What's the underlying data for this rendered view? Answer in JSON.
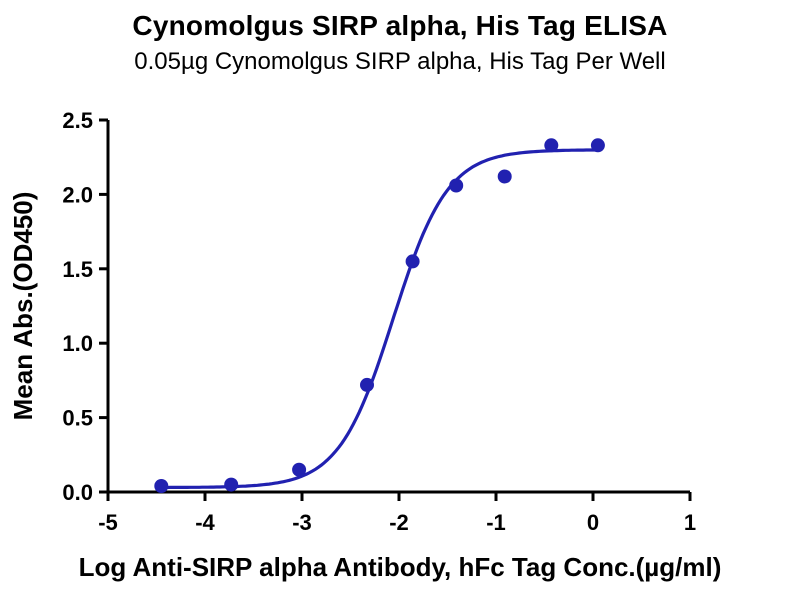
{
  "header": {
    "title": "Cynomolgus SIRP alpha, His Tag ELISA",
    "subtitle": "0.05µg Cynomolgus SIRP alpha, His Tag Per Well"
  },
  "chart_data": {
    "type": "scatter",
    "title": "Cynomolgus SIRP alpha, His Tag ELISA",
    "subtitle": "0.05µg Cynomolgus SIRP alpha, His Tag Per Well",
    "xlabel": "Log Anti-SIRP alpha Antibody, hFc Tag Conc.(µg/ml)",
    "ylabel": "Mean Abs.(OD450)",
    "xlim": [
      -5,
      1
    ],
    "ylim": [
      0,
      2.5
    ],
    "x_ticks": [
      -5,
      -4,
      -3,
      -2,
      -1,
      0,
      1
    ],
    "x_tick_labels": [
      "-5",
      "-4",
      "-3",
      "-2",
      "-1",
      "0",
      "1"
    ],
    "y_ticks": [
      0.0,
      0.5,
      1.0,
      1.5,
      2.0,
      2.5
    ],
    "y_tick_labels": [
      "0.0",
      "0.5",
      "1.0",
      "1.5",
      "2.0",
      "2.5"
    ],
    "grid": false,
    "legend": null,
    "marker": "circle",
    "line_color": "#2121B0",
    "marker_color": "#2121B0",
    "axis_color": "#000000",
    "points": [
      {
        "x": -4.45,
        "y": 0.04
      },
      {
        "x": -3.73,
        "y": 0.05
      },
      {
        "x": -3.03,
        "y": 0.15
      },
      {
        "x": -2.33,
        "y": 0.72
      },
      {
        "x": -1.86,
        "y": 1.55
      },
      {
        "x": -1.41,
        "y": 2.06
      },
      {
        "x": -0.91,
        "y": 2.12
      },
      {
        "x": -0.43,
        "y": 2.33
      },
      {
        "x": 0.05,
        "y": 2.33
      }
    ],
    "curve_fit": {
      "type": "4PL",
      "bottom": 0.03,
      "top": 2.3,
      "log_ec50": -2.06,
      "hill_slope": 1.55
    }
  }
}
